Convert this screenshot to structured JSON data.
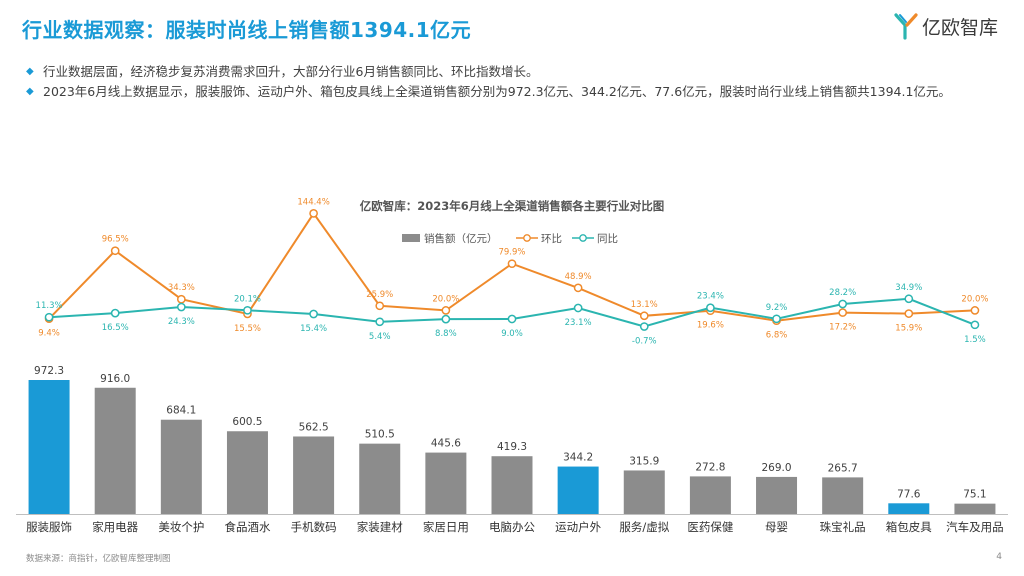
{
  "page": {
    "title": "行业数据观察：服装时尚线上销售额1394.1亿元",
    "logo_text": "亿欧智库",
    "bullets": [
      "行业数据层面，经济稳步复苏消费需求回升，大部分行业6月销售额同比、环比指数增长。",
      "2023年6月线上数据显示，服装服饰、运动户外、箱包皮具线上全渠道销售额分别为972.3亿元、344.2亿元、77.6亿元，服装时尚行业线上销售额共1394.1亿元。"
    ],
    "footer_source": "数据来源：商指针，亿欧智库整理制图",
    "page_number": "4"
  },
  "colors": {
    "title_blue": "#1a9ad6",
    "bar_gray": "#8c8c8c",
    "bar_highlight": "#1a9ad6",
    "mom_line": "#ef8a2b",
    "yoy_line": "#2bb5b0"
  },
  "chart_data": {
    "type": "bar",
    "title": "亿欧智库：2023年6月线上全渠道销售额各主要行业对比图",
    "legend": [
      "销售额（亿元）",
      "环比",
      "同比"
    ],
    "categories": [
      "服装服饰",
      "家用电器",
      "美妆个护",
      "食品酒水",
      "手机数码",
      "家装建材",
      "家居日用",
      "电脑办公",
      "运动户外",
      "服务/虚拟",
      "医药保健",
      "母婴",
      "珠宝礼品",
      "箱包皮具",
      "汽车及用品"
    ],
    "highlight": [
      true,
      false,
      false,
      false,
      false,
      false,
      false,
      false,
      true,
      false,
      false,
      false,
      false,
      true,
      false
    ],
    "series": [
      {
        "name": "销售额（亿元）",
        "kind": "bar",
        "values": [
          972.3,
          916.0,
          684.1,
          600.5,
          562.5,
          510.5,
          445.6,
          419.3,
          344.2,
          315.9,
          272.8,
          269.0,
          265.7,
          77.6,
          75.1
        ],
        "labels": [
          "972.3",
          "916.0",
          "684.1",
          "600.5",
          "562.5",
          "510.5",
          "445.6",
          "419.3",
          "344.2",
          "315.9",
          "272.8",
          "269.0",
          "265.7",
          "77.6",
          "75.1"
        ]
      },
      {
        "name": "环比",
        "kind": "line",
        "values": [
          9.4,
          96.5,
          34.3,
          15.5,
          144.4,
          25.9,
          20.0,
          79.9,
          48.9,
          13.1,
          19.6,
          6.8,
          17.2,
          15.9,
          20.0
        ],
        "labels": [
          "9.4%",
          "96.5%",
          "34.3%",
          "15.5%",
          "144.4%",
          "25.9%",
          "20.0%",
          "79.9%",
          "48.9%",
          "13.1%",
          "19.6%",
          "6.8%",
          "17.2%",
          "15.9%",
          "20.0%"
        ]
      },
      {
        "name": "同比",
        "kind": "line",
        "values": [
          11.3,
          16.5,
          24.3,
          20.1,
          15.4,
          5.4,
          8.8,
          9.0,
          23.1,
          -0.7,
          23.4,
          9.2,
          28.2,
          34.9,
          1.5
        ],
        "labels": [
          "11.3%",
          "16.5%",
          "24.3%",
          "20.1%",
          "15.4%",
          "5.4%",
          "8.8%",
          "9.0%",
          "23.1%",
          "-0.7%",
          "23.4%",
          "9.2%",
          "28.2%",
          "34.9%",
          "1.5%"
        ]
      }
    ],
    "label_position": {
      "环比": [
        "below",
        "above",
        "above",
        "below",
        "above",
        "above",
        "above",
        "above",
        "above",
        "above",
        "below",
        "below",
        "below",
        "below",
        "above"
      ],
      "同比": [
        "above",
        "below",
        "below",
        "above",
        "below",
        "below",
        "below",
        "below",
        "below",
        "below",
        "above",
        "above",
        "above",
        "above",
        "below"
      ]
    },
    "ylim_bar": [
      0,
      1000
    ],
    "ylim_line": [
      -10,
      150
    ]
  }
}
